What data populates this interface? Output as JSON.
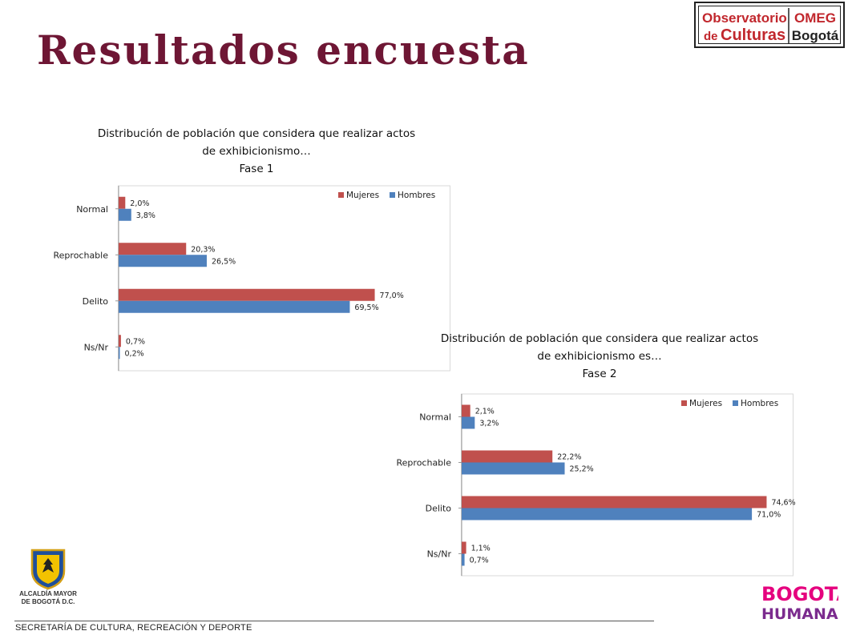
{
  "slide": {
    "title": "Resultados encuesta",
    "footer": "SECRETARÍA DE CULTURA, RECREACIÓN Y DEPORTE"
  },
  "logos": {
    "omeg": {
      "line1": "Observatorio",
      "line2a": "de ",
      "line2b": "Culturas",
      "omeg": "OMEG",
      "bogota": "Bogotá"
    },
    "alcaldia": {
      "line1": "ALCALDÍA MAYOR",
      "line2": "DE BOGOTÁ D.C."
    },
    "bogota_humana": {
      "line1": "BOGOTÁ",
      "line2": "HUMANA"
    }
  },
  "colors": {
    "mujeres": "#c0504d",
    "hombres": "#4f81bd",
    "title": "#6e1634"
  },
  "chart_data": [
    {
      "type": "bar",
      "orientation": "horizontal",
      "title": "Distribución de población que considera que realizar actos de exhibicionismo…",
      "title_lines": [
        "Distribución de población que considera que realizar actos",
        "de exhibicionismo…"
      ],
      "subtitle": "Fase 1",
      "categories": [
        "Normal",
        "Reprochable",
        "Delito",
        "Ns/Nr"
      ],
      "series": [
        {
          "name": "Mujeres",
          "values": [
            2.0,
            20.3,
            77.0,
            0.7
          ],
          "labels": [
            "2,0%",
            "20,3%",
            "77,0%",
            "0,7%"
          ]
        },
        {
          "name": "Hombres",
          "values": [
            3.8,
            26.5,
            69.5,
            0.2
          ],
          "labels": [
            "3,8%",
            "26,5%",
            "69,5%",
            "0,2%"
          ]
        }
      ],
      "xlim": [
        0,
        100
      ],
      "legend": "top-right",
      "grid": false
    },
    {
      "type": "bar",
      "orientation": "horizontal",
      "title": "Distribución de población que considera que realizar actos de exhibicionismo es…",
      "title_lines": [
        "Distribución de población que considera que realizar actos",
        "de exhibicionismo es…"
      ],
      "subtitle": "Fase 2",
      "categories": [
        "Normal",
        "Reprochable",
        "Delito",
        "Ns/Nr"
      ],
      "series": [
        {
          "name": "Mujeres",
          "values": [
            2.1,
            22.2,
            74.6,
            1.1
          ],
          "labels": [
            "2,1%",
            "22,2%",
            "74,6%",
            "1,1%"
          ]
        },
        {
          "name": "Hombres",
          "values": [
            3.2,
            25.2,
            71.0,
            0.7
          ],
          "labels": [
            "3,2%",
            "25,2%",
            "71,0%",
            "0,7%"
          ]
        }
      ],
      "xlim": [
        0,
        100
      ],
      "legend": "top-right",
      "grid": false
    }
  ]
}
